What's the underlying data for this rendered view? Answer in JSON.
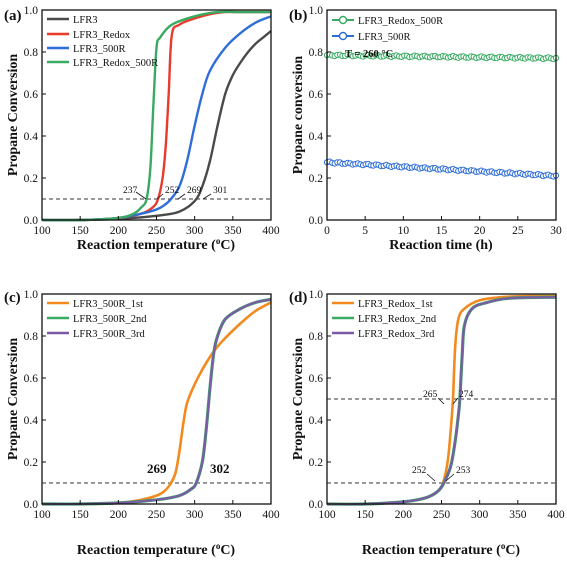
{
  "chart_data": [
    {
      "panel": "(a)",
      "type": "line",
      "xlabel": "Reaction temperature (°C)",
      "ylabel": "Propane Conversion",
      "xlim": [
        100,
        400
      ],
      "ylim": [
        0,
        1.0
      ],
      "xticks": [
        100,
        150,
        200,
        250,
        300,
        350,
        400
      ],
      "yticks": [
        0.0,
        0.2,
        0.4,
        0.6,
        0.8,
        1.0
      ],
      "legend_position": "top-left",
      "reference_line": {
        "y": 0.1,
        "style": "dashed"
      },
      "series": [
        {
          "name": "LFR3",
          "color": "#4a4a4a",
          "x": [
            100,
            150,
            200,
            250,
            280,
            300,
            310,
            320,
            330,
            340,
            350,
            360,
            370,
            380,
            390,
            400
          ],
          "y": [
            0.0,
            0.0,
            0.005,
            0.02,
            0.04,
            0.09,
            0.16,
            0.28,
            0.45,
            0.6,
            0.69,
            0.75,
            0.8,
            0.84,
            0.87,
            0.9
          ]
        },
        {
          "name": "LFR3_Redox",
          "color": "#e83b2c",
          "x": [
            100,
            150,
            200,
            230,
            245,
            252,
            258,
            262,
            266,
            270,
            280,
            300,
            320,
            340,
            360,
            400
          ],
          "y": [
            0.0,
            0.0,
            0.01,
            0.03,
            0.06,
            0.1,
            0.2,
            0.35,
            0.6,
            0.88,
            0.93,
            0.96,
            0.98,
            0.99,
            0.99,
            0.99
          ]
        },
        {
          "name": "LFR3_500R",
          "color": "#2f6ed6",
          "x": [
            100,
            150,
            200,
            230,
            250,
            260,
            269,
            280,
            290,
            300,
            310,
            320,
            340,
            360,
            380,
            400
          ],
          "y": [
            0.0,
            0.0,
            0.01,
            0.03,
            0.05,
            0.07,
            0.1,
            0.16,
            0.28,
            0.45,
            0.6,
            0.71,
            0.82,
            0.89,
            0.94,
            0.97
          ]
        },
        {
          "name": "LFR3_Redox_500R",
          "color": "#3aaa62",
          "x": [
            100,
            150,
            200,
            220,
            230,
            237,
            242,
            246,
            250,
            255,
            270,
            300,
            330,
            360,
            400
          ],
          "y": [
            0.0,
            0.0,
            0.01,
            0.03,
            0.06,
            0.1,
            0.25,
            0.55,
            0.82,
            0.87,
            0.93,
            0.97,
            0.99,
            0.99,
            0.99
          ]
        }
      ],
      "annotations": [
        "237",
        "252",
        "269",
        "301"
      ]
    },
    {
      "panel": "(b)",
      "type": "line",
      "xlabel": "Reaction time (h)",
      "ylabel": "Propane conversion",
      "xlim": [
        0,
        30
      ],
      "ylim": [
        0,
        1.0
      ],
      "xticks": [
        0,
        5,
        10,
        15,
        20,
        25,
        30
      ],
      "yticks": [
        0.0,
        0.2,
        0.4,
        0.6,
        0.8,
        1.0
      ],
      "legend_position": "top-right",
      "note": "T = 260 °C",
      "series": [
        {
          "name": "LFR3_Redox_500R",
          "color": "#3aaa62",
          "start": 0.785,
          "end": 0.77
        },
        {
          "name": "LFR3_500R",
          "color": "#2f6ed6",
          "start": 0.275,
          "end": 0.21
        }
      ]
    },
    {
      "panel": "(c)",
      "type": "line",
      "xlabel": "Reaction temperature (°C)",
      "ylabel": "Propane Conversion",
      "xlim": [
        100,
        400
      ],
      "ylim": [
        0,
        1.0
      ],
      "xticks": [
        100,
        150,
        200,
        250,
        300,
        350,
        400
      ],
      "yticks": [
        0.0,
        0.2,
        0.4,
        0.6,
        0.8,
        1.0
      ],
      "legend_position": "top-left",
      "reference_line": {
        "y": 0.1,
        "style": "dashed"
      },
      "series": [
        {
          "name": "LFR3_500R_1st",
          "color": "#f28a1f",
          "x": [
            100,
            150,
            200,
            230,
            250,
            260,
            269,
            275,
            280,
            285,
            290,
            300,
            310,
            320,
            330,
            340,
            360,
            380,
            400
          ],
          "y": [
            0.0,
            0.0,
            0.005,
            0.02,
            0.04,
            0.06,
            0.1,
            0.15,
            0.25,
            0.38,
            0.48,
            0.57,
            0.64,
            0.7,
            0.75,
            0.79,
            0.86,
            0.92,
            0.96
          ]
        },
        {
          "name": "LFR3_500R_2nd",
          "color": "#3aaa62",
          "x": [
            100,
            150,
            200,
            250,
            280,
            295,
            302,
            310,
            315,
            320,
            325,
            330,
            340,
            360,
            380,
            400
          ],
          "y": [
            0.0,
            0.0,
            0.005,
            0.02,
            0.04,
            0.07,
            0.1,
            0.2,
            0.35,
            0.55,
            0.72,
            0.8,
            0.88,
            0.93,
            0.96,
            0.975
          ]
        },
        {
          "name": "LFR3_500R_3rd",
          "color": "#7b5aa6",
          "x": [
            100,
            150,
            200,
            250,
            280,
            295,
            302,
            310,
            315,
            320,
            325,
            330,
            340,
            360,
            380,
            400
          ],
          "y": [
            0.0,
            0.0,
            0.005,
            0.02,
            0.04,
            0.07,
            0.1,
            0.2,
            0.35,
            0.55,
            0.72,
            0.8,
            0.88,
            0.93,
            0.96,
            0.975
          ]
        }
      ],
      "annotations": [
        "269",
        "302"
      ]
    },
    {
      "panel": "(d)",
      "type": "line",
      "xlabel": "Reaction temperature (°C)",
      "ylabel": "Propane Conversion",
      "xlim": [
        100,
        400
      ],
      "ylim": [
        0,
        1.0
      ],
      "xticks": [
        100,
        150,
        200,
        250,
        300,
        350,
        400
      ],
      "yticks": [
        0.0,
        0.2,
        0.4,
        0.6,
        0.8,
        1.0
      ],
      "legend_position": "top-left",
      "reference_lines": [
        {
          "y": 0.1,
          "style": "dashed"
        },
        {
          "y": 0.5,
          "style": "dashed"
        }
      ],
      "series": [
        {
          "name": "LFR3_Redox_1st",
          "color": "#f28a1f",
          "x": [
            100,
            150,
            200,
            230,
            245,
            252,
            258,
            262,
            265,
            268,
            272,
            280,
            300,
            330,
            360,
            400
          ],
          "y": [
            0.0,
            0.0,
            0.01,
            0.03,
            0.06,
            0.1,
            0.2,
            0.35,
            0.5,
            0.75,
            0.88,
            0.93,
            0.97,
            0.985,
            0.99,
            0.99
          ]
        },
        {
          "name": "LFR3_Redox_2nd",
          "color": "#3aaa62",
          "x": [
            100,
            150,
            200,
            230,
            245,
            253,
            262,
            268,
            272,
            274,
            277,
            280,
            290,
            310,
            340,
            400
          ],
          "y": [
            0.0,
            0.0,
            0.01,
            0.03,
            0.06,
            0.1,
            0.18,
            0.3,
            0.42,
            0.5,
            0.7,
            0.85,
            0.93,
            0.96,
            0.98,
            0.985
          ]
        },
        {
          "name": "LFR3_Redox_3rd",
          "color": "#7b5aa6",
          "x": [
            100,
            150,
            200,
            230,
            245,
            253,
            262,
            268,
            272,
            274,
            277,
            280,
            290,
            310,
            340,
            400
          ],
          "y": [
            0.0,
            0.0,
            0.01,
            0.03,
            0.06,
            0.1,
            0.18,
            0.3,
            0.42,
            0.5,
            0.7,
            0.85,
            0.93,
            0.96,
            0.98,
            0.985
          ]
        }
      ],
      "annotations": [
        "265",
        "274",
        "252",
        "253"
      ]
    }
  ],
  "labels": {
    "a": {
      "panel": "(a)",
      "xlabel_main": "Reaction temperature (",
      "xlabel_sup": "o",
      "xlabel_end": "C)",
      "ylabel": "Propane Conversion",
      "legend": [
        "LFR3",
        "LFR3_Redox",
        "LFR3_500R",
        "LFR3_Redox_500R"
      ],
      "annotations": [
        "237",
        "252",
        "269",
        "301"
      ]
    },
    "b": {
      "panel": "(b)",
      "xlabel": "Reaction time (h)",
      "ylabel": "Propane conversion",
      "legend": [
        "LFR3_Redox_500R",
        "LFR3_500R"
      ],
      "note": "T = 260 °C"
    },
    "c": {
      "panel": "(c)",
      "xlabel_main": "Reaction temperature (",
      "xlabel_sup": "o",
      "xlabel_end": "C)",
      "ylabel": "Propane Conversion",
      "legend": [
        "LFR3_500R_1st",
        "LFR3_500R_2nd",
        "LFR3_500R_3rd"
      ],
      "annotations": [
        "269",
        "302"
      ]
    },
    "d": {
      "panel": "(d)",
      "xlabel_main": "Reaction temperature (",
      "xlabel_sup": "o",
      "xlabel_end": "C)",
      "ylabel": "Propane Conversion",
      "legend": [
        "LFR3_Redox_1st",
        "LFR3_Redox_2nd",
        "LFR3_Redox_3rd"
      ],
      "annotations": [
        "265",
        "274",
        "252",
        "253"
      ]
    },
    "xticks_temp": [
      "100",
      "150",
      "200",
      "250",
      "300",
      "350",
      "400"
    ],
    "xticks_time": [
      "0",
      "5",
      "10",
      "15",
      "20",
      "25",
      "30"
    ],
    "yticks": [
      "0.0",
      "0.2",
      "0.4",
      "0.6",
      "0.8",
      "1.0"
    ]
  }
}
